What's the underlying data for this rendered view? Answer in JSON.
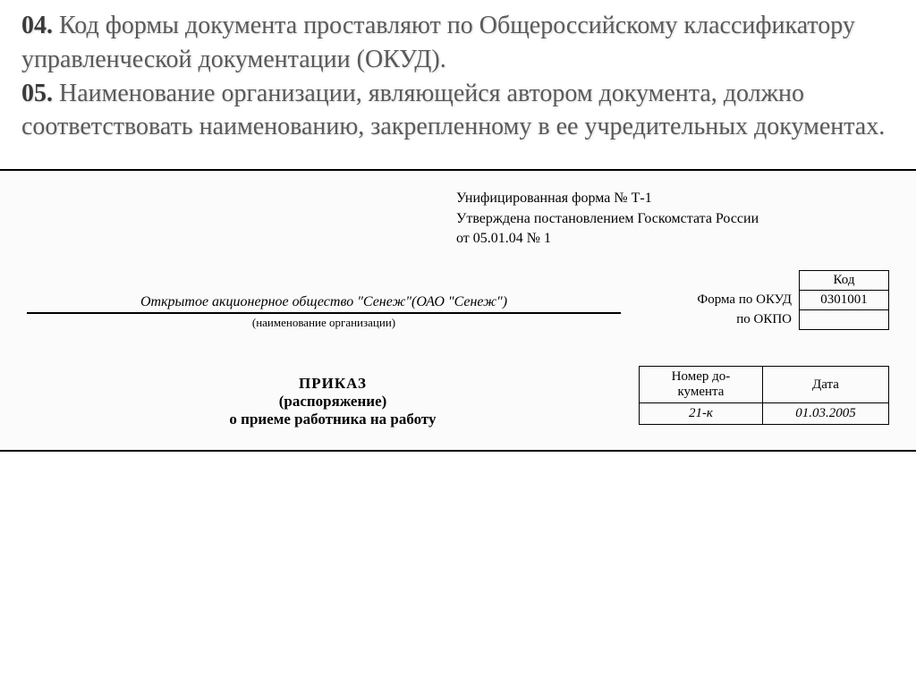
{
  "slide": {
    "item04_num": "04.",
    "item04_text": " Код формы документа проставляют по Общероссийскому классификатору управленческой документации (ОКУД).",
    "item05_num": "05.",
    "item05_text": " Наименование организации, являющейся автором документа, должно соответствовать наименованию, закрепленному в ее учредительных документах."
  },
  "form": {
    "header_line1": "Унифицированная форма № Т-1",
    "header_line2": "Утверждена постановлением Госкомстата России",
    "header_line3": "от 05.01.04 № 1",
    "code_header": "Код",
    "okud_label": "Форма по ОКУД",
    "okud_value": "0301001",
    "okpo_label": "по ОКПО",
    "okpo_value": "",
    "org_name": "Открытое акционерное общество \"Сенеж\"(ОАО \"Сенеж\")",
    "org_sublabel": "(наименование организации)",
    "order_title": "ПРИКАЗ",
    "order_sub1": "(распоряжение)",
    "order_sub2": "о приеме работника на работу",
    "docnum_header": "Номер до-\nкумента",
    "date_header": "Дата",
    "docnum_value": "21-к",
    "date_value": "01.03.2005"
  }
}
